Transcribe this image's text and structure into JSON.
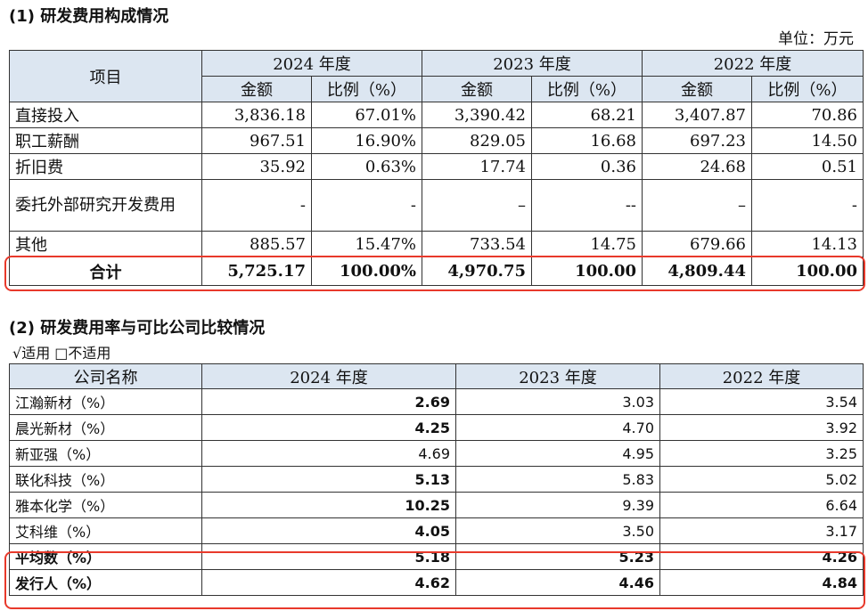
{
  "section1": {
    "title": "(1) 研发费用构成情况",
    "unit": "单位：万元",
    "header": {
      "item": "项目",
      "years": [
        "2024 年度",
        "2023 年度",
        "2022 年度"
      ],
      "amount": "金额",
      "ratio": "比例（%）"
    },
    "rows": [
      {
        "label": "直接投入",
        "cells": [
          "3,836.18",
          "67.01%",
          "3,390.42",
          "68.21",
          "3,407.87",
          "70.86"
        ]
      },
      {
        "label": "职工薪酬",
        "cells": [
          "967.51",
          "16.90%",
          "829.05",
          "16.68",
          "697.23",
          "14.50"
        ]
      },
      {
        "label": "折旧费",
        "cells": [
          "35.92",
          "0.63%",
          "17.74",
          "0.36",
          "24.68",
          "0.51"
        ]
      },
      {
        "label": "委托外部研究开发费用",
        "cells": [
          "-",
          "-",
          "–",
          "--",
          "–",
          "-"
        ]
      },
      {
        "label": "其他",
        "cells": [
          "885.57",
          "15.47%",
          "733.54",
          "14.75",
          "679.66",
          "14.13"
        ]
      }
    ],
    "total": {
      "label": "合计",
      "cells": [
        "5,725.17",
        "100.00%",
        "4,970.75",
        "100.00",
        "4,809.44",
        "100.00"
      ]
    }
  },
  "section2": {
    "title": "(2) 研发费用率与可比公司比较情况",
    "applicability": "√适用 □不适用",
    "header": {
      "company": "公司名称",
      "years": [
        "2024 年度",
        "2023 年度",
        "2022 年度"
      ]
    },
    "rows": [
      {
        "label": "江瀚新材（%）",
        "cells": [
          "2.69",
          "3.03",
          "3.54"
        ]
      },
      {
        "label": "晨光新材（%）",
        "cells": [
          "4.25",
          "4.70",
          "3.92"
        ]
      },
      {
        "label": "新亚强（%）",
        "cells": [
          "4.69",
          "4.95",
          "3.25"
        ]
      },
      {
        "label": "联化科技（%）",
        "cells": [
          "5.13",
          "5.83",
          "5.02"
        ]
      },
      {
        "label": "雅本化学（%）",
        "cells": [
          "10.25",
          "9.39",
          "6.64"
        ]
      },
      {
        "label": "艾科维（%）",
        "cells": [
          "4.05",
          "3.50",
          "3.17"
        ]
      }
    ],
    "average": {
      "label": "平均数（%）",
      "cells": [
        "5.18",
        "5.23",
        "4.26"
      ]
    },
    "issuer": {
      "label": "发行人（%）",
      "cells": [
        "4.62",
        "4.46",
        "4.84"
      ]
    }
  },
  "colors": {
    "header_bg": "#dce6f1",
    "highlight": "#e8392b"
  }
}
